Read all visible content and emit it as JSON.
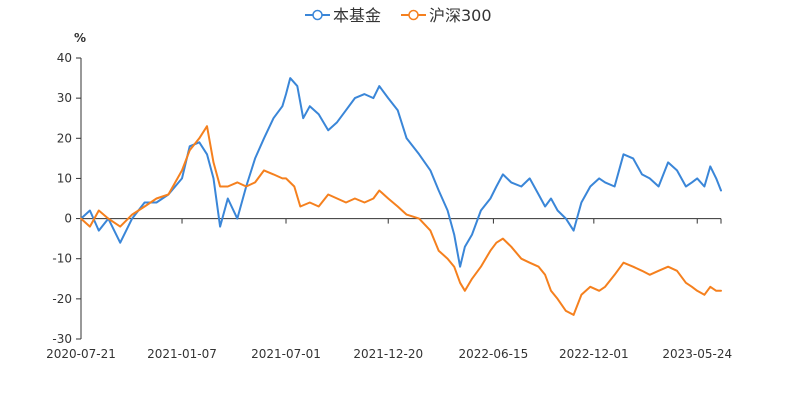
{
  "chart_data": {
    "type": "line",
    "title": "",
    "ylabel": "%",
    "xlabel": "",
    "ylim": [
      -30,
      40
    ],
    "yticks": [
      -30,
      -20,
      -10,
      0,
      10,
      20,
      30,
      40
    ],
    "x_start": "2020-07-21",
    "x_end": "2023-07-03",
    "xticks": [
      "2020-07-21",
      "2021-01-07",
      "2021-07-01",
      "2021-12-20",
      "2022-06-15",
      "2022-12-01",
      "2023-05-24"
    ],
    "legend_position": "top-center",
    "series": [
      {
        "name": "本基金",
        "color": "#3a86d8",
        "points": [
          [
            "2020-07-21",
            0
          ],
          [
            "2020-08-05",
            2
          ],
          [
            "2020-08-20",
            -3
          ],
          [
            "2020-09-05",
            0
          ],
          [
            "2020-09-25",
            -6
          ],
          [
            "2020-10-15",
            0
          ],
          [
            "2020-11-05",
            4
          ],
          [
            "2020-11-25",
            4
          ],
          [
            "2020-12-15",
            6
          ],
          [
            "2021-01-07",
            10
          ],
          [
            "2021-01-20",
            18
          ],
          [
            "2021-02-05",
            19
          ],
          [
            "2021-02-18",
            16
          ],
          [
            "2021-03-01",
            10
          ],
          [
            "2021-03-12",
            -2
          ],
          [
            "2021-03-25",
            5
          ],
          [
            "2021-04-10",
            0
          ],
          [
            "2021-04-25",
            8
          ],
          [
            "2021-05-10",
            15
          ],
          [
            "2021-05-25",
            20
          ],
          [
            "2021-06-10",
            25
          ],
          [
            "2021-06-25",
            28
          ],
          [
            "2021-07-01",
            31
          ],
          [
            "2021-07-08",
            35
          ],
          [
            "2021-07-20",
            33
          ],
          [
            "2021-07-30",
            25
          ],
          [
            "2021-08-10",
            28
          ],
          [
            "2021-08-25",
            26
          ],
          [
            "2021-09-10",
            22
          ],
          [
            "2021-09-25",
            24
          ],
          [
            "2021-10-10",
            27
          ],
          [
            "2021-10-25",
            30
          ],
          [
            "2021-11-10",
            31
          ],
          [
            "2021-11-25",
            30
          ],
          [
            "2021-12-05",
            33
          ],
          [
            "2021-12-20",
            30
          ],
          [
            "2022-01-05",
            27
          ],
          [
            "2022-01-20",
            20
          ],
          [
            "2022-02-10",
            16
          ],
          [
            "2022-03-01",
            12
          ],
          [
            "2022-03-15",
            7
          ],
          [
            "2022-03-30",
            2
          ],
          [
            "2022-04-10",
            -4
          ],
          [
            "2022-04-20",
            -12
          ],
          [
            "2022-04-28",
            -7
          ],
          [
            "2022-05-10",
            -4
          ],
          [
            "2022-05-25",
            2
          ],
          [
            "2022-06-10",
            5
          ],
          [
            "2022-06-20",
            8
          ],
          [
            "2022-07-01",
            11
          ],
          [
            "2022-07-15",
            9
          ],
          [
            "2022-08-01",
            8
          ],
          [
            "2022-08-15",
            10
          ],
          [
            "2022-08-30",
            6
          ],
          [
            "2022-09-10",
            3
          ],
          [
            "2022-09-20",
            5
          ],
          [
            "2022-10-01",
            2
          ],
          [
            "2022-10-15",
            0
          ],
          [
            "2022-10-28",
            -3
          ],
          [
            "2022-11-10",
            4
          ],
          [
            "2022-11-25",
            8
          ],
          [
            "2022-12-10",
            10
          ],
          [
            "2022-12-20",
            9
          ],
          [
            "2023-01-05",
            8
          ],
          [
            "2023-01-20",
            16
          ],
          [
            "2023-02-05",
            15
          ],
          [
            "2023-02-20",
            11
          ],
          [
            "2023-03-05",
            10
          ],
          [
            "2023-03-20",
            8
          ],
          [
            "2023-04-05",
            14
          ],
          [
            "2023-04-20",
            12
          ],
          [
            "2023-05-05",
            8
          ],
          [
            "2023-05-15",
            9
          ],
          [
            "2023-05-24",
            10
          ],
          [
            "2023-06-05",
            8
          ],
          [
            "2023-06-15",
            13
          ],
          [
            "2023-06-25",
            10
          ],
          [
            "2023-07-03",
            7
          ]
        ]
      },
      {
        "name": "沪深300",
        "color": "#f5801e",
        "points": [
          [
            "2020-07-21",
            0
          ],
          [
            "2020-08-05",
            -2
          ],
          [
            "2020-08-20",
            2
          ],
          [
            "2020-09-05",
            0
          ],
          [
            "2020-09-25",
            -2
          ],
          [
            "2020-10-15",
            1
          ],
          [
            "2020-11-05",
            3
          ],
          [
            "2020-11-25",
            5
          ],
          [
            "2020-12-15",
            6
          ],
          [
            "2021-01-07",
            12
          ],
          [
            "2021-01-20",
            17
          ],
          [
            "2021-02-05",
            20
          ],
          [
            "2021-02-18",
            23
          ],
          [
            "2021-03-01",
            14
          ],
          [
            "2021-03-12",
            8
          ],
          [
            "2021-03-25",
            8
          ],
          [
            "2021-04-10",
            9
          ],
          [
            "2021-04-25",
            8
          ],
          [
            "2021-05-10",
            9
          ],
          [
            "2021-05-25",
            12
          ],
          [
            "2021-06-10",
            11
          ],
          [
            "2021-06-25",
            10
          ],
          [
            "2021-07-01",
            10
          ],
          [
            "2021-07-15",
            8
          ],
          [
            "2021-07-25",
            3
          ],
          [
            "2021-08-10",
            4
          ],
          [
            "2021-08-25",
            3
          ],
          [
            "2021-09-10",
            6
          ],
          [
            "2021-09-25",
            5
          ],
          [
            "2021-10-10",
            4
          ],
          [
            "2021-10-25",
            5
          ],
          [
            "2021-11-10",
            4
          ],
          [
            "2021-11-25",
            5
          ],
          [
            "2021-12-05",
            7
          ],
          [
            "2021-12-20",
            5
          ],
          [
            "2022-01-05",
            3
          ],
          [
            "2022-01-20",
            1
          ],
          [
            "2022-02-10",
            0
          ],
          [
            "2022-03-01",
            -3
          ],
          [
            "2022-03-15",
            -8
          ],
          [
            "2022-03-30",
            -10
          ],
          [
            "2022-04-10",
            -12
          ],
          [
            "2022-04-20",
            -16
          ],
          [
            "2022-04-28",
            -18
          ],
          [
            "2022-05-10",
            -15
          ],
          [
            "2022-05-25",
            -12
          ],
          [
            "2022-06-10",
            -8
          ],
          [
            "2022-06-20",
            -6
          ],
          [
            "2022-07-01",
            -5
          ],
          [
            "2022-07-15",
            -7
          ],
          [
            "2022-08-01",
            -10
          ],
          [
            "2022-08-15",
            -11
          ],
          [
            "2022-08-30",
            -12
          ],
          [
            "2022-09-10",
            -14
          ],
          [
            "2022-09-20",
            -18
          ],
          [
            "2022-10-01",
            -20
          ],
          [
            "2022-10-15",
            -23
          ],
          [
            "2022-10-28",
            -24
          ],
          [
            "2022-11-10",
            -19
          ],
          [
            "2022-11-25",
            -17
          ],
          [
            "2022-12-10",
            -18
          ],
          [
            "2022-12-20",
            -17
          ],
          [
            "2023-01-05",
            -14
          ],
          [
            "2023-01-20",
            -11
          ],
          [
            "2023-02-05",
            -12
          ],
          [
            "2023-02-20",
            -13
          ],
          [
            "2023-03-05",
            -14
          ],
          [
            "2023-03-20",
            -13
          ],
          [
            "2023-04-05",
            -12
          ],
          [
            "2023-04-20",
            -13
          ],
          [
            "2023-05-05",
            -16
          ],
          [
            "2023-05-15",
            -17
          ],
          [
            "2023-05-24",
            -18
          ],
          [
            "2023-06-05",
            -19
          ],
          [
            "2023-06-15",
            -17
          ],
          [
            "2023-06-25",
            -18
          ],
          [
            "2023-07-03",
            -18
          ]
        ]
      }
    ]
  }
}
